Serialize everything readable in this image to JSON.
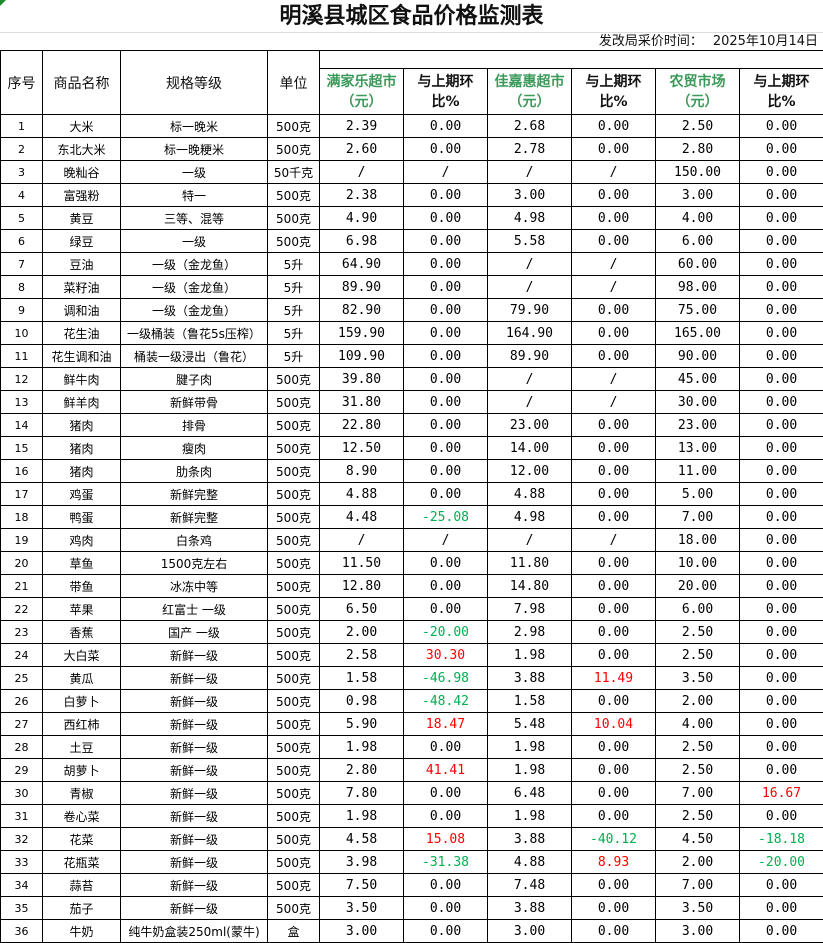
{
  "title": "明溪县城区食品价格监测表",
  "date_label": "发改局采价时间：",
  "date_value": "2025年10月14日",
  "colors": {
    "market_header": "#3b9a5a",
    "increase": "#ff0000",
    "decrease": "#00b050"
  },
  "headers": {
    "no": "序号",
    "name": "商品名称",
    "spec": "规格等级",
    "unit": "单位",
    "m1": "满家乐超市（元）",
    "c1": "与上期环比%",
    "m2": "佳嘉惠超市（元）",
    "c2": "与上期环比%",
    "m3": "农贸市场（元）",
    "c3": "与上期环比%"
  },
  "rows": [
    [
      "1",
      "大米",
      "标一晚米",
      "500克",
      "2.39",
      "0.00",
      "2.68",
      "0.00",
      "2.50",
      "0.00"
    ],
    [
      "2",
      "东北大米",
      "标一晚粳米",
      "500克",
      "2.60",
      "0.00",
      "2.78",
      "0.00",
      "2.80",
      "0.00"
    ],
    [
      "3",
      "晚籼谷",
      "一级",
      "50千克",
      "/",
      "/",
      "/",
      "/",
      "150.00",
      "0.00"
    ],
    [
      "4",
      "富强粉",
      "特一",
      "500克",
      "2.38",
      "0.00",
      "3.00",
      "0.00",
      "3.00",
      "0.00"
    ],
    [
      "5",
      "黄豆",
      "三等、混等",
      "500克",
      "4.90",
      "0.00",
      "4.98",
      "0.00",
      "4.00",
      "0.00"
    ],
    [
      "6",
      "绿豆",
      "一级",
      "500克",
      "6.98",
      "0.00",
      "5.58",
      "0.00",
      "6.00",
      "0.00"
    ],
    [
      "7",
      "豆油",
      "一级（金龙鱼）",
      "5升",
      "64.90",
      "0.00",
      "/",
      "/",
      "60.00",
      "0.00"
    ],
    [
      "8",
      "菜籽油",
      "一级（金龙鱼）",
      "5升",
      "89.90",
      "0.00",
      "/",
      "/",
      "98.00",
      "0.00"
    ],
    [
      "9",
      "调和油",
      "一级（金龙鱼）",
      "5升",
      "82.90",
      "0.00",
      "79.90",
      "0.00",
      "75.00",
      "0.00"
    ],
    [
      "10",
      "花生油",
      "一级桶装（鲁花5s压榨）",
      "5升",
      "159.90",
      "0.00",
      "164.90",
      "0.00",
      "165.00",
      "0.00"
    ],
    [
      "11",
      "花生调和油",
      "桶装一级浸出（鲁花）",
      "5升",
      "109.90",
      "0.00",
      "89.90",
      "0.00",
      "90.00",
      "0.00"
    ],
    [
      "12",
      "鲜牛肉",
      "腱子肉",
      "500克",
      "39.80",
      "0.00",
      "/",
      "/",
      "45.00",
      "0.00"
    ],
    [
      "13",
      "鲜羊肉",
      "新鲜带骨",
      "500克",
      "31.80",
      "0.00",
      "/",
      "/",
      "30.00",
      "0.00"
    ],
    [
      "14",
      "猪肉",
      "排骨",
      "500克",
      "22.80",
      "0.00",
      "23.00",
      "0.00",
      "23.00",
      "0.00"
    ],
    [
      "15",
      "猪肉",
      "瘦肉",
      "500克",
      "12.50",
      "0.00",
      "14.00",
      "0.00",
      "13.00",
      "0.00"
    ],
    [
      "16",
      "猪肉",
      "肋条肉",
      "500克",
      "8.90",
      "0.00",
      "12.00",
      "0.00",
      "11.00",
      "0.00"
    ],
    [
      "17",
      "鸡蛋",
      "新鲜完整",
      "500克",
      "4.88",
      "0.00",
      "4.88",
      "0.00",
      "5.00",
      "0.00"
    ],
    [
      "18",
      "鸭蛋",
      "新鲜完整",
      "500克",
      "4.48",
      "-25.08",
      "4.98",
      "0.00",
      "7.00",
      "0.00"
    ],
    [
      "19",
      "鸡肉",
      "白条鸡",
      "500克",
      "/",
      "/",
      "/",
      "/",
      "18.00",
      "0.00"
    ],
    [
      "20",
      "草鱼",
      "1500克左右",
      "500克",
      "11.50",
      "0.00",
      "11.80",
      "0.00",
      "10.00",
      "0.00"
    ],
    [
      "21",
      "带鱼",
      "冰冻中等",
      "500克",
      "12.80",
      "0.00",
      "14.80",
      "0.00",
      "20.00",
      "0.00"
    ],
    [
      "22",
      "苹果",
      "红富士 一级",
      "500克",
      "6.50",
      "0.00",
      "7.98",
      "0.00",
      "6.00",
      "0.00"
    ],
    [
      "23",
      "香蕉",
      "国产 一级",
      "500克",
      "2.00",
      "-20.00",
      "2.98",
      "0.00",
      "2.50",
      "0.00"
    ],
    [
      "24",
      "大白菜",
      "新鲜一级",
      "500克",
      "2.58",
      "30.30",
      "1.98",
      "0.00",
      "2.50",
      "0.00"
    ],
    [
      "25",
      "黄瓜",
      "新鲜一级",
      "500克",
      "1.58",
      "-46.98",
      "3.88",
      "11.49",
      "3.50",
      "0.00"
    ],
    [
      "26",
      "白萝卜",
      "新鲜一级",
      "500克",
      "0.98",
      "-48.42",
      "1.58",
      "0.00",
      "2.00",
      "0.00"
    ],
    [
      "27",
      "西红柿",
      "新鲜一级",
      "500克",
      "5.90",
      "18.47",
      "5.48",
      "10.04",
      "4.00",
      "0.00"
    ],
    [
      "28",
      "土豆",
      "新鲜一级",
      "500克",
      "1.98",
      "0.00",
      "1.98",
      "0.00",
      "2.50",
      "0.00"
    ],
    [
      "29",
      "胡萝卜",
      "新鲜一级",
      "500克",
      "2.80",
      "41.41",
      "1.98",
      "0.00",
      "2.50",
      "0.00"
    ],
    [
      "30",
      "青椒",
      "新鲜一级",
      "500克",
      "7.80",
      "0.00",
      "6.48",
      "0.00",
      "7.00",
      "16.67"
    ],
    [
      "31",
      "卷心菜",
      "新鲜一级",
      "500克",
      "1.98",
      "0.00",
      "1.98",
      "0.00",
      "2.50",
      "0.00"
    ],
    [
      "32",
      "花菜",
      "新鲜一级",
      "500克",
      "4.58",
      "15.08",
      "3.88",
      "-40.12",
      "4.50",
      "-18.18"
    ],
    [
      "33",
      "花瓶菜",
      "新鲜一级",
      "500克",
      "3.98",
      "-31.38",
      "4.88",
      "8.93",
      "2.00",
      "-20.00"
    ],
    [
      "34",
      "蒜苔",
      "新鲜一级",
      "500克",
      "7.50",
      "0.00",
      "7.48",
      "0.00",
      "7.00",
      "0.00"
    ],
    [
      "35",
      "茄子",
      "新鲜一级",
      "500克",
      "3.50",
      "0.00",
      "3.88",
      "0.00",
      "3.50",
      "0.00"
    ],
    [
      "36",
      "牛奶",
      "纯牛奶盒装250ml(蒙牛)",
      "盒",
      "3.00",
      "0.00",
      "3.00",
      "0.00",
      "3.00",
      "0.00"
    ]
  ]
}
